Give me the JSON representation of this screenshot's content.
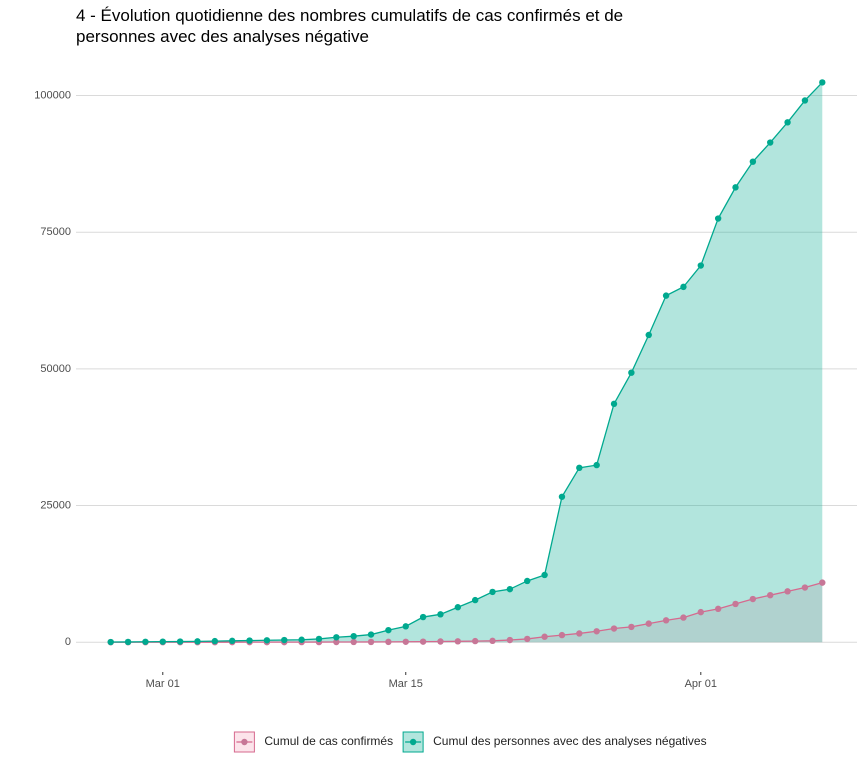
{
  "chart_data": {
    "type": "line",
    "title": [
      "4 - Évolution quotidienne des nombres cumulatifs de cas confirmés et de",
      " personnes avec des analyses négative"
    ],
    "x": [
      "02-27",
      "02-28",
      "02-29",
      "03-01",
      "03-02",
      "03-03",
      "03-04",
      "03-05",
      "03-06",
      "03-07",
      "03-08",
      "03-09",
      "03-10",
      "03-11",
      "03-12",
      "03-13",
      "03-14",
      "03-15",
      "03-16",
      "03-17",
      "03-18",
      "03-19",
      "03-20",
      "03-21",
      "03-22",
      "03-23",
      "03-24",
      "03-25",
      "03-26",
      "03-27",
      "03-28",
      "03-29",
      "03-30",
      "03-31",
      "04-01",
      "04-02",
      "04-03",
      "04-04",
      "04-05",
      "04-06",
      "04-07",
      "04-08"
    ],
    "series": [
      {
        "name": "Cumul de cas confirmés",
        "color": "#d6698e",
        "fill": "#f4a6bd",
        "point_color": "#c77797",
        "values": [
          1,
          1,
          1,
          1,
          2,
          3,
          4,
          6,
          8,
          10,
          15,
          20,
          25,
          30,
          40,
          50,
          60,
          80,
          100,
          130,
          160,
          200,
          250,
          400,
          600,
          1000,
          1300,
          1600,
          2000,
          2500,
          2800,
          3400,
          4000,
          4500,
          5500,
          6100,
          7000,
          7900,
          8600,
          9300,
          10000,
          10900
        ]
      },
      {
        "name": "Cumul des personnes avec des analyses négatives",
        "color": "#00a98f",
        "fill": "#00a98f",
        "point_color": "#00a98f",
        "values": [
          30,
          50,
          80,
          100,
          120,
          150,
          200,
          250,
          300,
          350,
          400,
          450,
          600,
          900,
          1100,
          1400,
          2200,
          2900,
          4600,
          5100,
          6400,
          7700,
          9200,
          9700,
          11200,
          12300,
          26600,
          31900,
          32400,
          43600,
          49300,
          56200,
          63400,
          65000,
          68900,
          77500,
          83200,
          87900,
          91400,
          95100,
          99100,
          102400
        ]
      }
    ],
    "xlim": [
      "02-25",
      "04-10"
    ],
    "xticks": [
      {
        "value": "03-01",
        "label": "Mar 01"
      },
      {
        "value": "03-15",
        "label": "Mar 15"
      },
      {
        "value": "04-01",
        "label": "Apr 01"
      }
    ],
    "ylim": [
      -6000,
      106500
    ],
    "yticks": [
      0,
      25000,
      50000,
      75000,
      100000
    ],
    "grid": true,
    "area": true,
    "legend": "bottom"
  }
}
